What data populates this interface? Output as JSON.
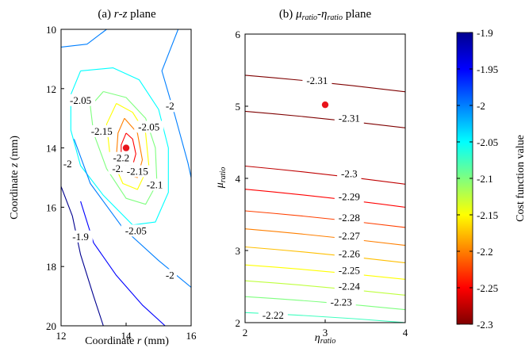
{
  "chart_data": [
    {
      "type": "contour",
      "title": {
        "prefix": "(a) ",
        "var1": "r",
        "sep": "-",
        "var2": "z",
        "suffix": " plane"
      },
      "xlabel": {
        "prefix": "Coordinate ",
        "var": "r",
        "suffix": " (mm)"
      },
      "ylabel": {
        "prefix": "Coordinate ",
        "var": "z",
        "suffix": " (mm)"
      },
      "xlim": [
        12,
        16
      ],
      "ylim": [
        20,
        10
      ],
      "y_reversed": true,
      "xticks": [
        "12",
        "14",
        "16"
      ],
      "yticks": [
        "10",
        "12",
        "14",
        "16",
        "18",
        "20"
      ],
      "optimum": {
        "x": 14.0,
        "y": 14.0
      },
      "contours": [
        {
          "level": -2.25,
          "label": "-2.25",
          "label_at": [
            13.9,
            14.7
          ],
          "points": [
            [
              14.0,
              13.5
            ],
            [
              14.2,
              13.7
            ],
            [
              14.3,
              14.2
            ],
            [
              14.2,
              14.6
            ],
            [
              14.0,
              14.6
            ],
            [
              13.85,
              14.3
            ],
            [
              13.85,
              13.9
            ],
            [
              14.0,
              13.5
            ]
          ]
        },
        {
          "level": -2.2,
          "label": "-2.2",
          "label_at": [
            13.85,
            14.35
          ],
          "points": [
            [
              13.95,
              13.0
            ],
            [
              14.35,
              13.5
            ],
            [
              14.5,
              14.4
            ],
            [
              14.35,
              15.0
            ],
            [
              13.95,
              14.9
            ],
            [
              13.7,
              14.3
            ],
            [
              13.75,
              13.5
            ],
            [
              13.95,
              13.0
            ]
          ]
        },
        {
          "level": -2.15,
          "label": "-2.15",
          "label_at": [
            14.35,
            14.8
          ],
          "points": [
            [
              13.7,
              12.5
            ],
            [
              14.2,
              12.8
            ],
            [
              14.6,
              13.5
            ],
            [
              14.7,
              14.6
            ],
            [
              14.35,
              15.4
            ],
            [
              13.9,
              15.2
            ],
            [
              13.5,
              14.2
            ],
            [
              13.4,
              13.2
            ],
            [
              13.7,
              12.5
            ]
          ]
        },
        {
          "level": -2.15,
          "label": "-2.15",
          "label_at": [
            13.25,
            13.45
          ],
          "points": []
        },
        {
          "level": -2.1,
          "label": "-2.1",
          "label_at": [
            14.88,
            15.25
          ],
          "points": [
            [
              13.3,
              12.1
            ],
            [
              14.0,
              12.3
            ],
            [
              14.6,
              13.0
            ],
            [
              14.9,
              14.0
            ],
            [
              14.95,
              15.2
            ],
            [
              14.6,
              15.9
            ],
            [
              14.0,
              15.7
            ],
            [
              13.4,
              14.7
            ],
            [
              13.0,
              13.5
            ],
            [
              12.9,
              12.6
            ],
            [
              13.3,
              12.1
            ]
          ]
        },
        {
          "level": -2.05,
          "label": "-2.05",
          "label_at": [
            12.6,
            12.4
          ],
          "points": [
            [
              12.6,
              11.4
            ],
            [
              13.6,
              11.3
            ],
            [
              14.4,
              11.7
            ],
            [
              15.0,
              12.7
            ],
            [
              15.3,
              14.0
            ],
            [
              15.3,
              15.5
            ],
            [
              14.9,
              16.5
            ],
            [
              14.2,
              16.6
            ],
            [
              13.3,
              15.6
            ],
            [
              12.6,
              14.6
            ],
            [
              12.3,
              13.4
            ],
            [
              12.3,
              12.2
            ],
            [
              12.6,
              11.4
            ]
          ]
        },
        {
          "level": -2.05,
          "label": "-2.05",
          "label_at": [
            14.7,
            13.3
          ],
          "points": []
        },
        {
          "level": -2.05,
          "label": "-2.05",
          "label_at": [
            14.3,
            16.8
          ],
          "points": []
        },
        {
          "level": -2.0,
          "label": "-2",
          "label_at": [
            15.35,
            12.6
          ],
          "points": [
            [
              12.0,
              10.6
            ],
            [
              12.8,
              10.5
            ],
            [
              13.4,
              10.0
            ]
          ]
        },
        {
          "level": -2.0,
          "label": "-2",
          "label_at": [
            12.2,
            14.55
          ],
          "points": [
            [
              15.6,
              10.0
            ],
            [
              15.1,
              11.4
            ],
            [
              15.5,
              12.9
            ],
            [
              15.9,
              14.5
            ],
            [
              16.0,
              15.0
            ]
          ]
        },
        {
          "level": -2.0,
          "label": "-2",
          "label_at": [
            15.35,
            18.3
          ],
          "points": [
            [
              12.4,
              13.7
            ],
            [
              12.9,
              15.2
            ],
            [
              13.9,
              16.7
            ],
            [
              15.0,
              17.8
            ],
            [
              16.0,
              18.7
            ]
          ]
        },
        {
          "level": -1.95,
          "label": "",
          "label_at": null,
          "points": [
            [
              12.6,
              15.8
            ],
            [
              13.0,
              17.2
            ],
            [
              13.7,
              18.3
            ],
            [
              14.5,
              19.3
            ],
            [
              15.2,
              20.0
            ]
          ]
        },
        {
          "level": -1.9,
          "label": "-1.9",
          "label_at": [
            12.6,
            17.0
          ],
          "points": [
            [
              12.0,
              15.3
            ],
            [
              12.35,
              16.3
            ],
            [
              12.6,
              17.6
            ],
            [
              13.0,
              19.0
            ],
            [
              13.3,
              20.0
            ]
          ]
        }
      ]
    },
    {
      "type": "contour",
      "title": {
        "prefix": "(b) ",
        "var1": "μ",
        "sub1": "ratio",
        "sep": "-",
        "var2": "η",
        "sub2": "ratio",
        "suffix": " plane"
      },
      "xlabel": {
        "var": "η",
        "sub": "ratio"
      },
      "ylabel": {
        "var": "μ",
        "sub": "ratio"
      },
      "xlim": [
        2,
        4
      ],
      "ylim": [
        2,
        6
      ],
      "xticks": [
        "2",
        "3",
        "4"
      ],
      "yticks": [
        "2",
        "3",
        "4",
        "5",
        "6"
      ],
      "optimum": {
        "x": 3.0,
        "y": 5.02
      },
      "contours": [
        {
          "level": -2.31,
          "label": "-2.31",
          "y_left": 5.43,
          "y_right": 5.2,
          "label_at": [
            2.9,
            5.35
          ]
        },
        {
          "level": -2.31,
          "label": "-2.31",
          "y_left": 4.93,
          "y_right": 4.7,
          "label_at": [
            3.3,
            4.83
          ]
        },
        {
          "level": -2.3,
          "label": "-2.3",
          "y_left": 4.17,
          "y_right": 3.92,
          "label_at": [
            3.3,
            4.06
          ]
        },
        {
          "level": -2.29,
          "label": "-2.29",
          "y_left": 3.85,
          "y_right": 3.6,
          "label_at": [
            3.3,
            3.74
          ]
        },
        {
          "level": -2.28,
          "label": "-2.28",
          "y_left": 3.55,
          "y_right": 3.32,
          "label_at": [
            3.3,
            3.45
          ]
        },
        {
          "level": -2.27,
          "label": "-2.27",
          "y_left": 3.3,
          "y_right": 3.07,
          "label_at": [
            3.3,
            3.2
          ]
        },
        {
          "level": -2.26,
          "label": "-2.26",
          "y_left": 3.05,
          "y_right": 2.83,
          "label_at": [
            3.3,
            2.95
          ]
        },
        {
          "level": -2.25,
          "label": "-2.25",
          "y_left": 2.8,
          "y_right": 2.6,
          "label_at": [
            3.3,
            2.72
          ]
        },
        {
          "level": -2.24,
          "label": "-2.24",
          "y_left": 2.58,
          "y_right": 2.38,
          "label_at": [
            3.3,
            2.5
          ]
        },
        {
          "level": -2.23,
          "label": "-2.23",
          "y_left": 2.36,
          "y_right": 2.18,
          "label_at": [
            3.2,
            2.28
          ]
        },
        {
          "level": -2.22,
          "label": "-2.22",
          "y_left": 2.14,
          "y_right": 2.0,
          "label_at": [
            2.35,
            2.1
          ]
        }
      ]
    }
  ],
  "colorbar": {
    "label": "Cost function value",
    "min": -2.3,
    "max": -1.9,
    "ticks": [
      "-1.9",
      "-1.95",
      "-2",
      "-2.05",
      "-2.1",
      "-2.15",
      "-2.2",
      "-2.25",
      "-2.3"
    ],
    "colormap": [
      "#7f0000",
      "#ff0000",
      "#ff7f00",
      "#ffff00",
      "#7fff7f",
      "#00ffff",
      "#007fff",
      "#0000ff",
      "#00008f"
    ]
  },
  "marker_color": "#e8141b"
}
